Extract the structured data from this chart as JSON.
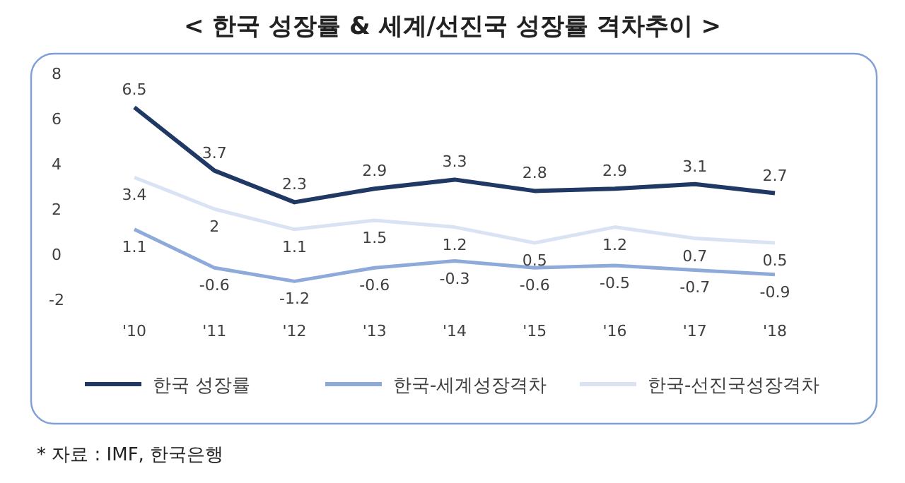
{
  "chart_data": {
    "type": "line",
    "title": "< 한국 성장률 & 세계/선진국 성장률 격차추이 >",
    "categories": [
      "'10",
      "'11",
      "'12",
      "'13",
      "'14",
      "'15",
      "'16",
      "'17",
      "'18"
    ],
    "series": [
      {
        "name": "한국 성장률",
        "color": "#1f3864",
        "values": [
          6.5,
          3.7,
          2.3,
          2.9,
          3.3,
          2.8,
          2.9,
          3.1,
          2.7
        ]
      },
      {
        "name": "한국-세계성장격차",
        "color": "#8eaadb",
        "values": [
          1.1,
          -0.6,
          -1.2,
          -0.6,
          -0.3,
          -0.6,
          -0.5,
          -0.7,
          -0.9
        ]
      },
      {
        "name": "한국-선진국성장격차",
        "color": "#dae3f3",
        "values": [
          3.4,
          2,
          1.1,
          1.5,
          1.2,
          0.5,
          1.2,
          0.7,
          0.5
        ]
      }
    ],
    "ylim": [
      -2,
      8
    ],
    "yticks": [
      -2,
      0,
      2,
      4,
      6,
      8
    ],
    "grid": false,
    "legend": "bottom",
    "marker": "none",
    "line_style": "solid",
    "data_labels": true,
    "annotations": [
      "* 자료 : IMF, 한국은행"
    ]
  }
}
